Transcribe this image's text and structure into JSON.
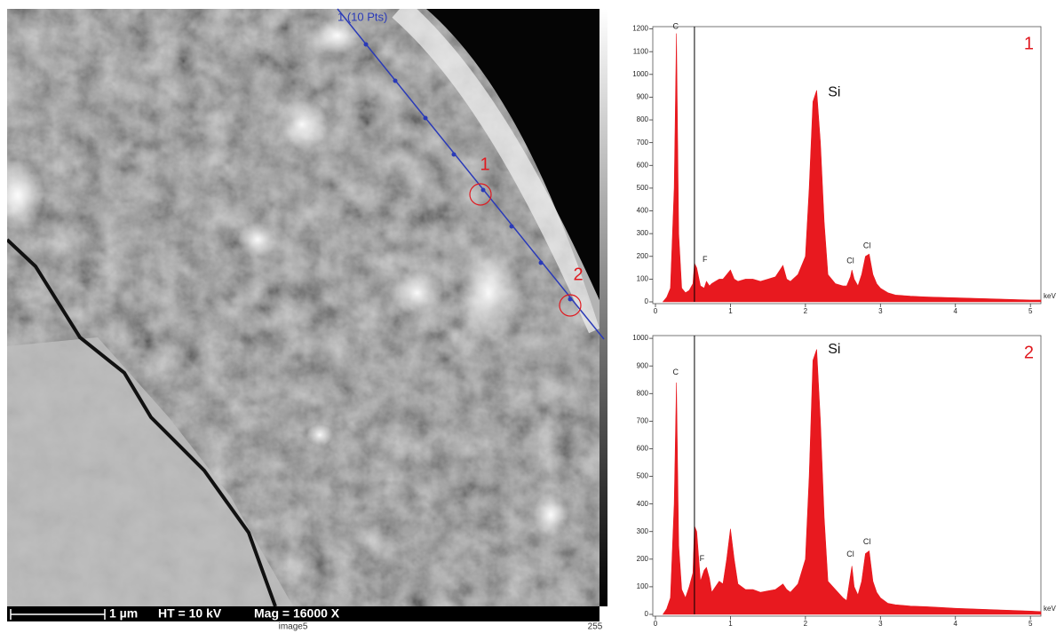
{
  "image": {
    "line_label": "1 (10 Pts)",
    "points": [
      "1",
      "2"
    ],
    "scale_bar": "1 µm",
    "voltage": "HT = 10 kV",
    "magnification": "Mag = 16000 X",
    "name": "image5",
    "gray_max": "255"
  },
  "chart_data": [
    {
      "type": "spectrum",
      "panel": "1",
      "xlabel": "keV",
      "color": "#e8191f",
      "xlim": [
        0,
        5.14
      ],
      "xticks": [
        0,
        1,
        2,
        3,
        4,
        5
      ],
      "ylim": [
        0,
        1210
      ],
      "yticks": [
        0,
        100,
        200,
        300,
        400,
        500,
        600,
        700,
        800,
        900,
        1000,
        1100,
        1200
      ],
      "marker_lines": [
        0.52
      ],
      "x": [
        0.1,
        0.15,
        0.2,
        0.25,
        0.28,
        0.31,
        0.35,
        0.4,
        0.45,
        0.5,
        0.52,
        0.55,
        0.6,
        0.65,
        0.68,
        0.72,
        0.75,
        0.8,
        0.85,
        0.9,
        0.95,
        1.0,
        1.05,
        1.1,
        1.2,
        1.3,
        1.4,
        1.5,
        1.6,
        1.7,
        1.75,
        1.8,
        1.9,
        2.0,
        2.05,
        2.1,
        2.15,
        2.2,
        2.25,
        2.3,
        2.4,
        2.5,
        2.55,
        2.6,
        2.62,
        2.65,
        2.7,
        2.75,
        2.8,
        2.85,
        2.9,
        2.95,
        3.0,
        3.1,
        3.2,
        3.4,
        3.6,
        3.8,
        4.0,
        4.2,
        4.4,
        4.6,
        4.8,
        5.0,
        5.14
      ],
      "values": [
        0,
        20,
        60,
        500,
        1180,
        300,
        60,
        40,
        50,
        80,
        170,
        150,
        70,
        60,
        90,
        70,
        80,
        90,
        100,
        100,
        120,
        140,
        100,
        90,
        100,
        100,
        90,
        100,
        110,
        160,
        100,
        90,
        120,
        200,
        500,
        880,
        930,
        700,
        350,
        120,
        80,
        70,
        70,
        110,
        140,
        100,
        70,
        120,
        200,
        210,
        120,
        80,
        60,
        40,
        30,
        25,
        22,
        20,
        18,
        16,
        14,
        12,
        10,
        8,
        8
      ],
      "peak_labels": [
        {
          "text": "C",
          "x": 0.27,
          "y": 1190
        },
        {
          "text": "F",
          "x": 0.66,
          "y": 165
        },
        {
          "text": "Cl",
          "x": 2.6,
          "y": 160
        },
        {
          "text": "Cl",
          "x": 2.82,
          "y": 225
        }
      ],
      "major_peak": {
        "text": "Si",
        "x": 2.3,
        "y": 920
      }
    },
    {
      "type": "spectrum",
      "panel": "2",
      "xlabel": "keV",
      "color": "#e8191f",
      "xlim": [
        0,
        5.14
      ],
      "xticks": [
        0,
        1,
        2,
        3,
        4,
        5
      ],
      "ylim": [
        0,
        1010
      ],
      "yticks": [
        0,
        100,
        200,
        300,
        400,
        500,
        600,
        700,
        800,
        900,
        1000
      ],
      "marker_lines": [
        0.52
      ],
      "x": [
        0.1,
        0.15,
        0.2,
        0.25,
        0.28,
        0.31,
        0.35,
        0.4,
        0.45,
        0.5,
        0.52,
        0.55,
        0.6,
        0.65,
        0.68,
        0.72,
        0.75,
        0.8,
        0.85,
        0.9,
        0.95,
        1.0,
        1.05,
        1.1,
        1.2,
        1.3,
        1.4,
        1.5,
        1.6,
        1.7,
        1.75,
        1.8,
        1.9,
        2.0,
        2.05,
        2.1,
        2.15,
        2.2,
        2.25,
        2.3,
        2.4,
        2.5,
        2.55,
        2.6,
        2.62,
        2.65,
        2.7,
        2.75,
        2.8,
        2.85,
        2.9,
        2.95,
        3.0,
        3.1,
        3.2,
        3.4,
        3.6,
        3.8,
        4.0,
        4.2,
        4.4,
        4.6,
        4.8,
        5.0,
        5.14
      ],
      "values": [
        0,
        20,
        60,
        400,
        840,
        250,
        90,
        60,
        100,
        150,
        320,
        300,
        120,
        160,
        170,
        130,
        80,
        100,
        120,
        110,
        200,
        310,
        200,
        110,
        90,
        90,
        80,
        85,
        90,
        110,
        90,
        80,
        110,
        200,
        500,
        920,
        960,
        700,
        350,
        120,
        90,
        60,
        50,
        140,
        175,
        100,
        70,
        120,
        220,
        230,
        120,
        80,
        60,
        40,
        35,
        30,
        28,
        25,
        22,
        20,
        18,
        16,
        14,
        12,
        10
      ],
      "peak_labels": [
        {
          "text": "C",
          "x": 0.27,
          "y": 860
        },
        {
          "text": "F",
          "x": 0.62,
          "y": 185
        },
        {
          "text": "Cl",
          "x": 2.6,
          "y": 200
        },
        {
          "text": "Cl",
          "x": 2.82,
          "y": 245
        }
      ],
      "major_peak": {
        "text": "Si",
        "x": 2.3,
        "y": 960
      }
    }
  ]
}
